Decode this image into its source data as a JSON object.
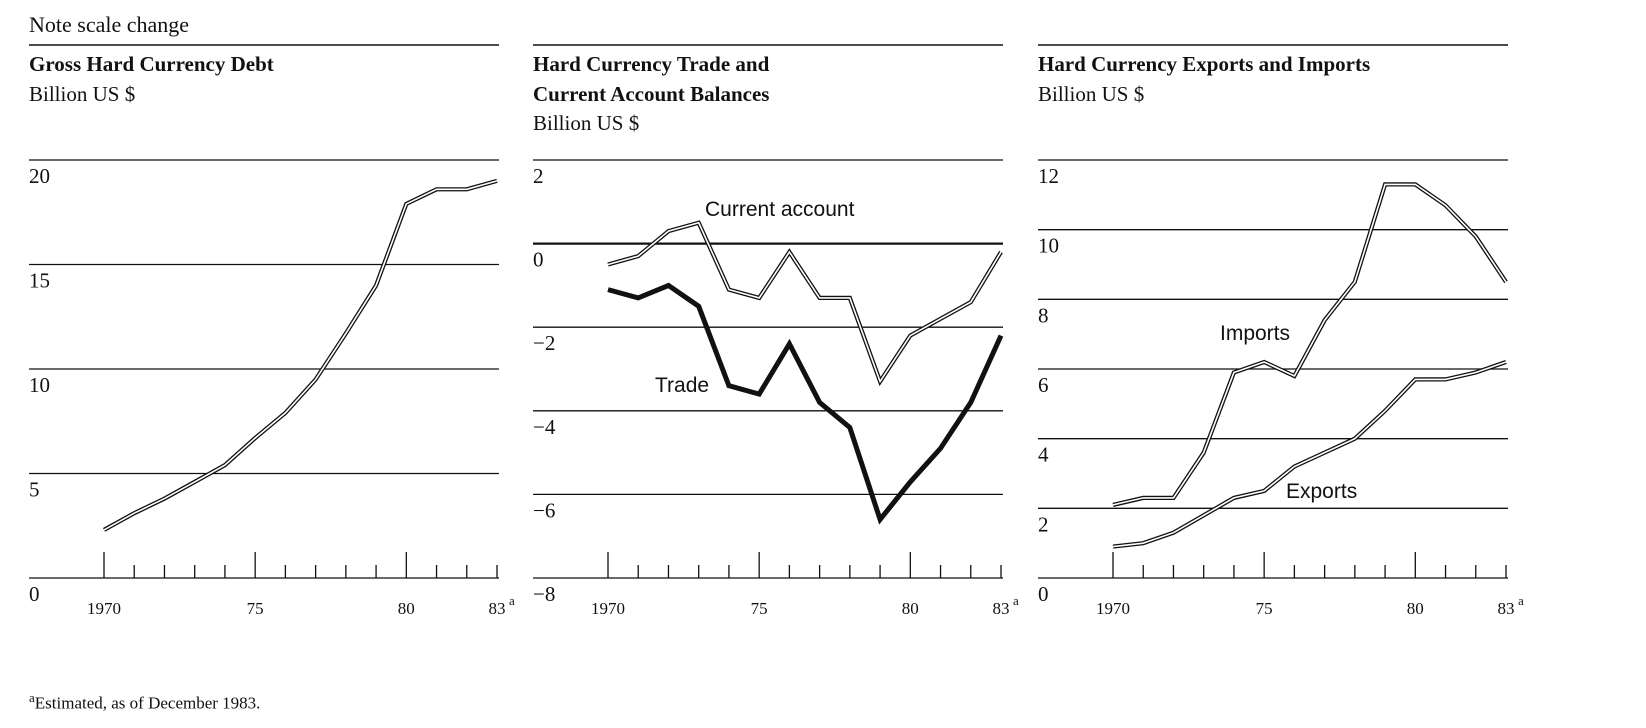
{
  "note": "Note scale change",
  "footnote": {
    "marker": "a",
    "text": "Estimated, as of December 1983."
  },
  "chart_data": [
    {
      "type": "line",
      "title": "Gross Hard Currency Debt",
      "unit": "Billion US $",
      "ylim": [
        0,
        20
      ],
      "yticks": [
        "0",
        "5",
        "10",
        "15",
        "20"
      ],
      "xlim": [
        1970,
        1983
      ],
      "xticks": [
        {
          "label": "1970"
        },
        {
          "label": "75"
        },
        {
          "label": "80"
        },
        {
          "label": "83",
          "sup": "a"
        }
      ],
      "series": [
        {
          "style": "double",
          "x": [
            1970,
            1971,
            1972,
            1973,
            1974,
            1975,
            1976,
            1977,
            1978,
            1979,
            1980,
            1981,
            1982,
            1983
          ],
          "values": [
            2.3,
            3.1,
            3.8,
            4.6,
            5.4,
            6.7,
            7.9,
            9.5,
            11.7,
            14.0,
            17.9,
            18.6,
            18.6,
            19.0
          ]
        }
      ]
    },
    {
      "type": "line",
      "title_lines": [
        "Hard Currency Trade and",
        "Current Account Balances"
      ],
      "unit": "Billion US $",
      "ylim": [
        -8,
        2
      ],
      "yticks": [
        "−8",
        "−6",
        "−4",
        "−2",
        "0",
        "2"
      ],
      "xlim": [
        1970,
        1983
      ],
      "xticks": [
        {
          "label": "1970"
        },
        {
          "label": "75"
        },
        {
          "label": "80"
        },
        {
          "label": "83",
          "sup": "a"
        }
      ],
      "series": [
        {
          "name": "Current account",
          "style": "double",
          "x": [
            1970,
            1971,
            1972,
            1973,
            1974,
            1975,
            1976,
            1977,
            1978,
            1979,
            1980,
            1981,
            1982,
            1983
          ],
          "values": [
            -0.5,
            -0.3,
            0.3,
            0.5,
            -1.1,
            -1.3,
            -0.2,
            -1.3,
            -1.3,
            -3.3,
            -2.2,
            -1.8,
            -1.4,
            -0.2
          ]
        },
        {
          "name": "Trade",
          "style": "thick",
          "x": [
            1970,
            1971,
            1972,
            1973,
            1974,
            1975,
            1976,
            1977,
            1978,
            1979,
            1980,
            1981,
            1982,
            1983
          ],
          "values": [
            -1.1,
            -1.3,
            -1.0,
            -1.5,
            -3.4,
            -3.6,
            -2.4,
            -3.8,
            -4.4,
            -6.6,
            -5.7,
            -4.9,
            -3.8,
            -2.2
          ]
        }
      ]
    },
    {
      "type": "line",
      "title": "Hard Currency Exports and Imports",
      "unit": "Billion US $",
      "ylim": [
        0,
        12
      ],
      "yticks": [
        "0",
        "2",
        "4",
        "6",
        "8",
        "10",
        "12"
      ],
      "xlim": [
        1970,
        1983
      ],
      "xticks": [
        {
          "label": "1970"
        },
        {
          "label": "75"
        },
        {
          "label": "80"
        },
        {
          "label": "83",
          "sup": "a"
        }
      ],
      "series": [
        {
          "name": "Imports",
          "style": "double",
          "x": [
            1970,
            1971,
            1972,
            1973,
            1974,
            1975,
            1976,
            1977,
            1978,
            1979,
            1980,
            1981,
            1982,
            1983
          ],
          "values": [
            2.1,
            2.3,
            2.3,
            3.6,
            5.9,
            6.2,
            5.8,
            7.4,
            8.5,
            11.3,
            11.3,
            10.7,
            9.8,
            8.5
          ]
        },
        {
          "name": "Exports",
          "style": "double",
          "x": [
            1970,
            1971,
            1972,
            1973,
            1974,
            1975,
            1976,
            1977,
            1978,
            1979,
            1980,
            1981,
            1982,
            1983
          ],
          "values": [
            0.9,
            1.0,
            1.3,
            1.8,
            2.3,
            2.5,
            3.2,
            3.6,
            4.0,
            4.8,
            5.7,
            5.7,
            5.9,
            6.2
          ]
        }
      ]
    }
  ]
}
